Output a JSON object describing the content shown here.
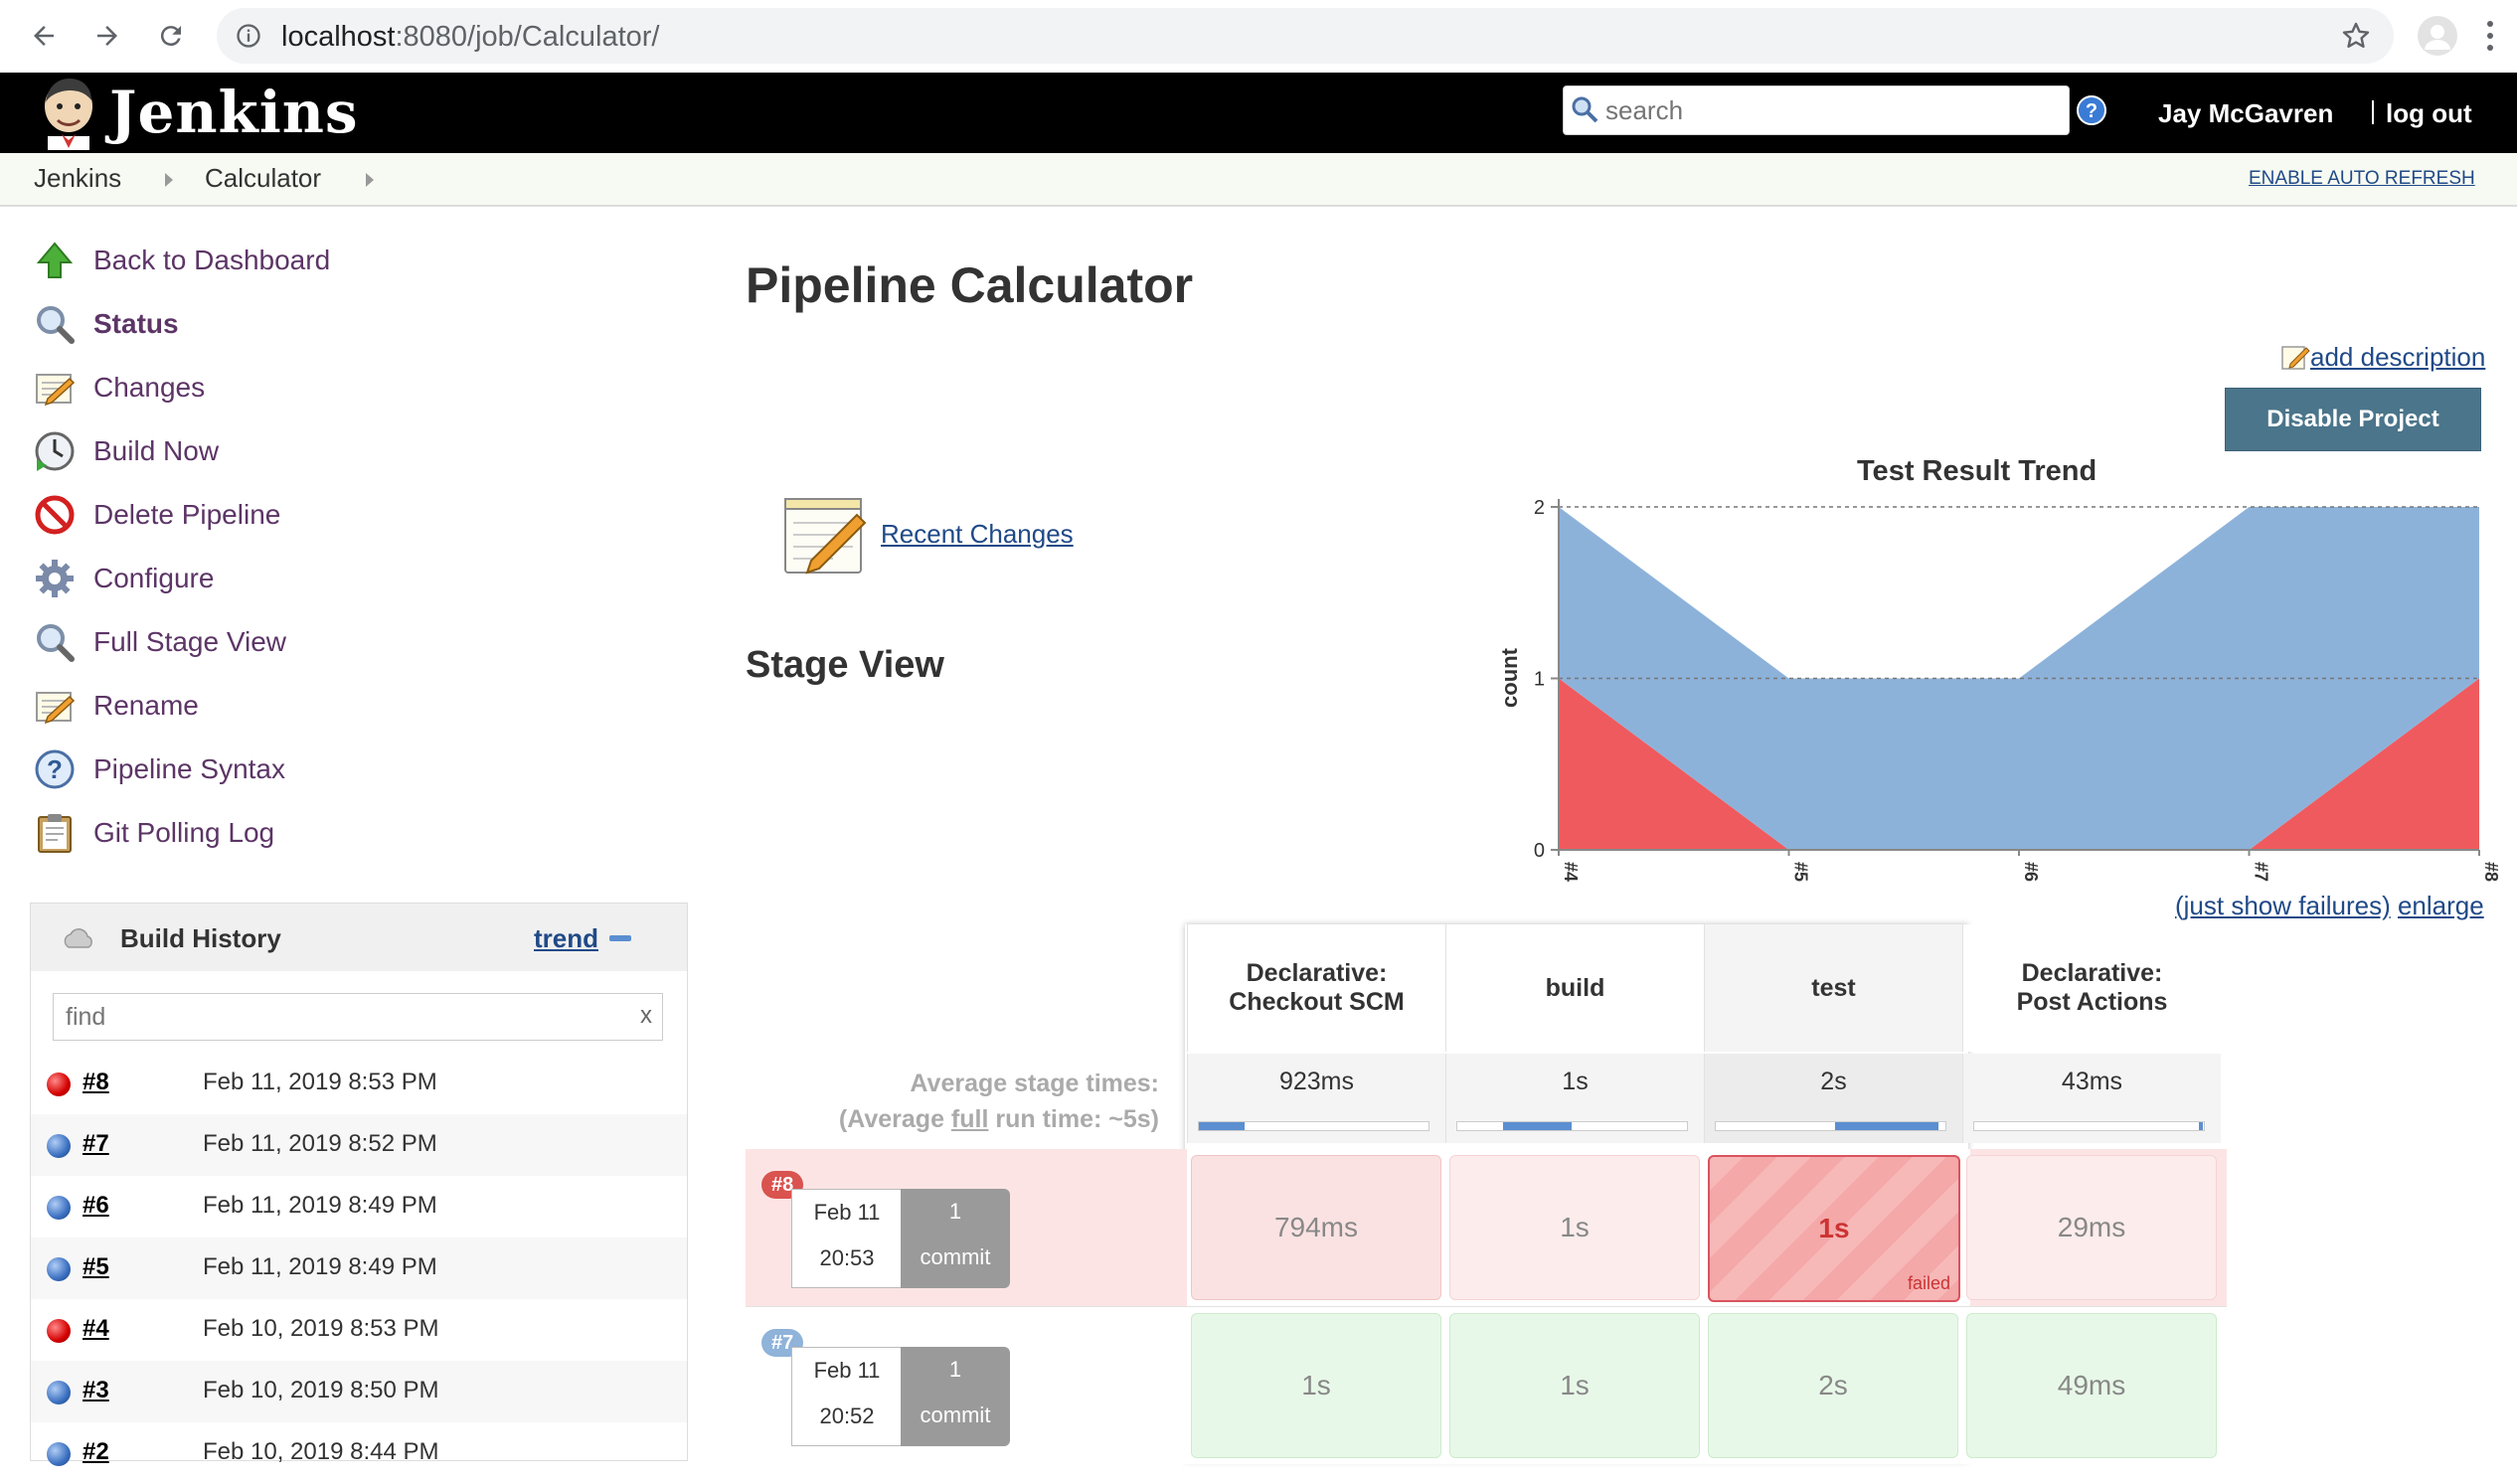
{
  "browser": {
    "url_host": "localhost",
    "url_path": ":8080/job/Calculator/"
  },
  "header": {
    "brand": "Jenkins",
    "search_placeholder": "search",
    "user_name": "Jay McGavren",
    "logout_label": "log out"
  },
  "breadcrumbs": {
    "items": [
      "Jenkins",
      "Calculator"
    ],
    "auto_refresh": "ENABLE AUTO REFRESH"
  },
  "sidebar": {
    "items": [
      {
        "label": "Back to Dashboard",
        "icon": "up-arrow-icon"
      },
      {
        "label": "Status",
        "icon": "magnifier-icon"
      },
      {
        "label": "Changes",
        "icon": "notepad-icon"
      },
      {
        "label": "Build Now",
        "icon": "clock-play-icon"
      },
      {
        "label": "Delete Pipeline",
        "icon": "no-entry-icon"
      },
      {
        "label": "Configure",
        "icon": "gear-icon"
      },
      {
        "label": "Full Stage View",
        "icon": "magnifier-icon"
      },
      {
        "label": "Rename",
        "icon": "notepad-icon"
      },
      {
        "label": "Pipeline Syntax",
        "icon": "help-icon"
      },
      {
        "label": "Git Polling Log",
        "icon": "clipboard-icon"
      }
    ]
  },
  "build_history": {
    "title": "Build History",
    "trend_label": "trend",
    "find_placeholder": "find",
    "clear_label": "x",
    "builds": [
      {
        "num": "#8",
        "date": "Feb 11, 2019 8:53 PM",
        "status": "red"
      },
      {
        "num": "#7",
        "date": "Feb 11, 2019 8:52 PM",
        "status": "blue"
      },
      {
        "num": "#6",
        "date": "Feb 11, 2019 8:49 PM",
        "status": "blue"
      },
      {
        "num": "#5",
        "date": "Feb 11, 2019 8:49 PM",
        "status": "blue"
      },
      {
        "num": "#4",
        "date": "Feb 10, 2019 8:53 PM",
        "status": "red"
      },
      {
        "num": "#3",
        "date": "Feb 10, 2019 8:50 PM",
        "status": "blue"
      },
      {
        "num": "#2",
        "date": "Feb 10, 2019 8:44 PM",
        "status": "blue"
      }
    ]
  },
  "main": {
    "title": "Pipeline Calculator",
    "add_description": "add description",
    "disable_button": "Disable Project",
    "recent_changes": "Recent Changes",
    "stage_view_title": "Stage View"
  },
  "trend": {
    "title": "Test Result Trend",
    "just_show_failures": "(just show failures)",
    "enlarge": "enlarge"
  },
  "chart_data": {
    "type": "area",
    "title": "Test Result Trend",
    "ylabel": "count",
    "x": [
      "#4",
      "#5",
      "#6",
      "#7",
      "#8"
    ],
    "ylim": [
      0,
      2
    ],
    "yticks": [
      "0",
      "1",
      "2"
    ],
    "series": [
      {
        "values": [
          1,
          0,
          0,
          0,
          1
        ],
        "color": "#ef5a5e"
      },
      {
        "values": [
          1,
          1,
          1,
          2,
          1
        ],
        "color": "#8db2da"
      }
    ]
  },
  "stage_view": {
    "avg_label_line1": "Average stage times:",
    "avg_label_line2a": "(Average ",
    "avg_label_full": "full",
    "avg_label_line2b": " run time: ~5s)",
    "stages": [
      {
        "name_line1": "Declarative:",
        "name_line2": "Checkout SCM",
        "avg": "923ms",
        "avg_fraction": 0.2
      },
      {
        "name_line1": "build",
        "name_line2": "",
        "avg": "1s",
        "avg_fraction": 0.3
      },
      {
        "name_line1": "test",
        "name_line2": "",
        "avg": "2s",
        "avg_fraction": 0.45
      },
      {
        "name_line1": "Declarative:",
        "name_line2": "Post Actions",
        "avg": "43ms",
        "avg_fraction": 0.01
      }
    ],
    "runs": [
      {
        "badge": "#8",
        "date": "Feb 11",
        "time": "20:53",
        "commit_count": "1",
        "commit_label": "commit",
        "cells": [
          "794ms",
          "1s",
          "1s",
          "29ms"
        ],
        "failed_label": "failed"
      },
      {
        "badge": "#7",
        "date": "Feb 11",
        "time": "20:52",
        "commit_count": "1",
        "commit_label": "commit",
        "cells": [
          "1s",
          "1s",
          "2s",
          "49ms"
        ]
      }
    ]
  }
}
